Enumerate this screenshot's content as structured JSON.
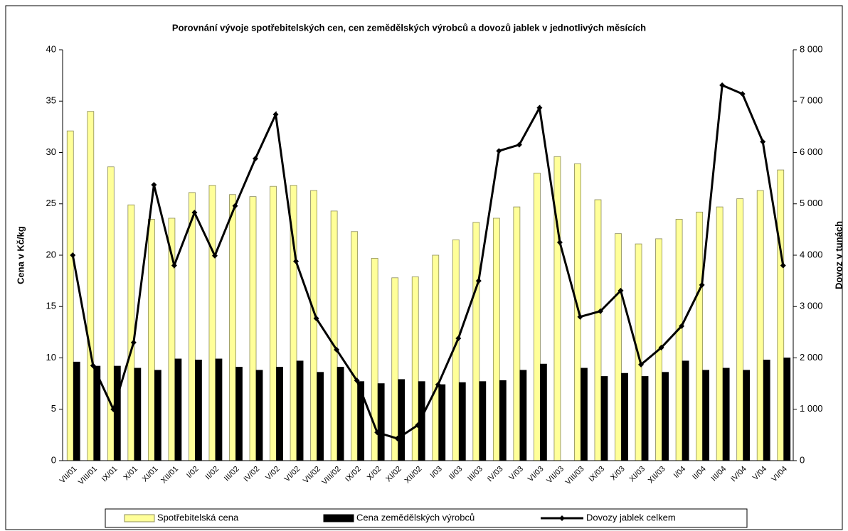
{
  "chart_data": {
    "type": "bar-line",
    "title": "Porovnání vývoje spotřebitelských cen, cen zemědělských výrobců a dovozů jablek v jednotlivých měsících",
    "ylabel": "Cena v Kč/kg",
    "y2label": "Dovoz v tunách",
    "categories": [
      "VII/01",
      "VIII/01",
      "IX/01",
      "X/01",
      "XI/01",
      "XII/01",
      "I/02",
      "II/02",
      "III/02",
      "IV/02",
      "V/02",
      "VI/02",
      "VII/02",
      "VIII/02",
      "IX/02",
      "X/02",
      "XI/02",
      "XII/02",
      "I/03",
      "II/03",
      "III/03",
      "IV/03",
      "V/03",
      "VI/03",
      "VII/03",
      "VIII/03",
      "IX/03",
      "X/03",
      "XI/03",
      "XII/03",
      "I/04",
      "II/04",
      "III/04",
      "IV/04",
      "V/04",
      "VI/04"
    ],
    "series": [
      {
        "name": "Spotřebitelská cena",
        "type": "bar",
        "color": "#ffff99",
        "values": [
          32.1,
          34.0,
          28.6,
          24.9,
          23.5,
          23.6,
          26.1,
          26.8,
          25.9,
          25.7,
          26.7,
          26.8,
          26.3,
          24.3,
          22.3,
          19.7,
          17.8,
          17.9,
          20.0,
          21.5,
          23.2,
          23.6,
          24.7,
          28.0,
          29.6,
          28.9,
          25.4,
          22.1,
          21.1,
          21.6,
          23.5,
          24.2,
          24.7,
          25.5,
          26.3,
          28.3
        ]
      },
      {
        "name": "Cena zemědělských výrobců",
        "type": "bar",
        "color": "#000000",
        "values": [
          9.6,
          9.2,
          9.2,
          9.0,
          8.8,
          9.9,
          9.8,
          9.9,
          9.1,
          8.8,
          9.1,
          9.7,
          8.6,
          9.1,
          7.7,
          7.5,
          7.9,
          7.7,
          7.4,
          7.6,
          7.7,
          7.8,
          8.8,
          9.4,
          null,
          9.0,
          8.2,
          8.5,
          8.2,
          8.6,
          9.7,
          8.8,
          9.0,
          8.8,
          9.8,
          10.0
        ]
      },
      {
        "name": "Dovozy jablek celkem",
        "type": "line",
        "axis": "y2",
        "color": "#000000",
        "values": [
          4000,
          1850,
          1000,
          2300,
          5370,
          3800,
          4830,
          3990,
          4960,
          5880,
          6740,
          3880,
          2770,
          2160,
          1560,
          550,
          430,
          690,
          1480,
          2380,
          3500,
          6030,
          6150,
          6870,
          4250,
          2800,
          2910,
          3310,
          1870,
          2200,
          2620,
          3420,
          7310,
          7140,
          6210,
          3800
        ]
      }
    ],
    "ylim": [
      0,
      40
    ],
    "yticks": [
      0,
      5,
      10,
      15,
      20,
      25,
      30,
      35,
      40
    ],
    "y2lim": [
      0,
      8000
    ],
    "y2ticks": [
      0,
      {
        "value": 1000,
        "label": "1 000"
      },
      {
        "value": 2000,
        "label": "2 000"
      },
      {
        "value": 3000,
        "label": "3 000"
      },
      {
        "value": 4000,
        "label": "4 000"
      },
      {
        "value": 5000,
        "label": "5 000"
      },
      {
        "value": 6000,
        "label": "6 000"
      },
      {
        "value": 7000,
        "label": "7 000"
      },
      {
        "value": 8000,
        "label": "8 000"
      }
    ],
    "legend": "bottom"
  }
}
